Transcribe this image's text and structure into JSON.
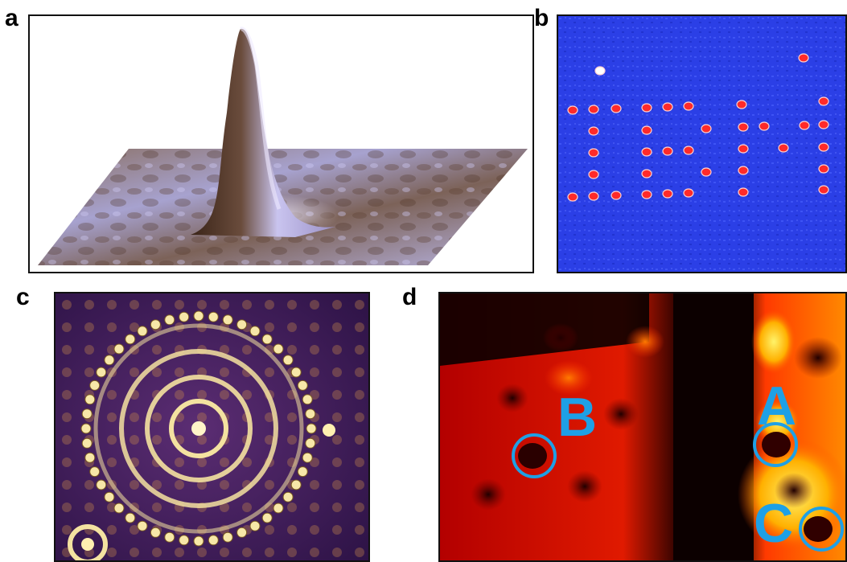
{
  "panels": {
    "a": {
      "letter": "a"
    },
    "b": {
      "letter": "b"
    },
    "c": {
      "letter": "c"
    },
    "d": {
      "letter": "d",
      "sites": [
        {
          "label": "A"
        },
        {
          "label": "B"
        },
        {
          "label": "C"
        }
      ]
    }
  },
  "colors": {
    "panel_b_background": "#2a3ee8",
    "panel_b_dots": "#ff2a2a",
    "panel_c_background": "#3a1a55",
    "panel_c_rings": "#f4e2a0",
    "panel_d_background": "#9a0000",
    "panel_d_bright": "#ffe84a",
    "panel_d_labels": "#1ea0e6"
  },
  "icons": {
    "a": "3d-peak-surface",
    "b": "atom-array-pattern",
    "c": "quantum-corral-rings",
    "d": "heatmap-with-circled-sites"
  }
}
